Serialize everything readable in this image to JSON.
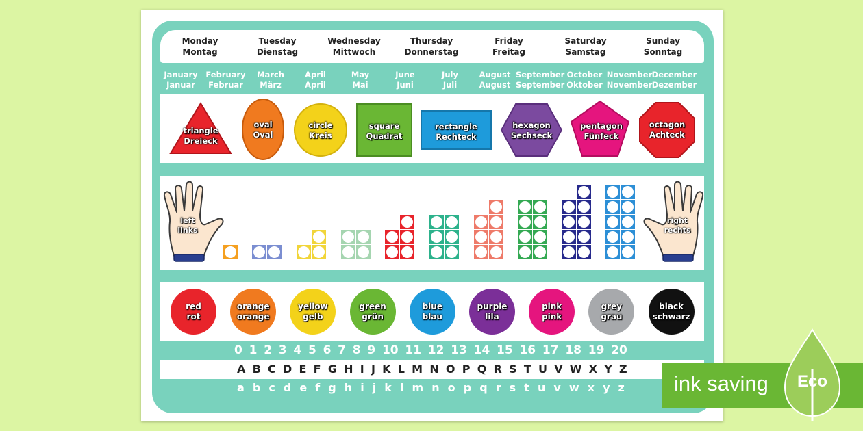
{
  "days": [
    {
      "en": "Monday",
      "de": "Montag"
    },
    {
      "en": "Tuesday",
      "de": "Dienstag"
    },
    {
      "en": "Wednesday",
      "de": "Mittwoch"
    },
    {
      "en": "Thursday",
      "de": "Donnerstag"
    },
    {
      "en": "Friday",
      "de": "Freitag"
    },
    {
      "en": "Saturday",
      "de": "Samstag"
    },
    {
      "en": "Sunday",
      "de": "Sonntag"
    }
  ],
  "months": [
    {
      "en": "January",
      "de": "Januar"
    },
    {
      "en": "February",
      "de": "Februar"
    },
    {
      "en": "March",
      "de": "März"
    },
    {
      "en": "April",
      "de": "April"
    },
    {
      "en": "May",
      "de": "Mai"
    },
    {
      "en": "June",
      "de": "Juni"
    },
    {
      "en": "July",
      "de": "Juli"
    },
    {
      "en": "August",
      "de": "August"
    },
    {
      "en": "September",
      "de": "September"
    },
    {
      "en": "October",
      "de": "Oktober"
    },
    {
      "en": "November",
      "de": "November"
    },
    {
      "en": "December",
      "de": "Dezember"
    }
  ],
  "shapes": [
    {
      "en": "triangle",
      "de": "Dreieck",
      "color": "#e8242b"
    },
    {
      "en": "oval",
      "de": "Oval",
      "color": "#f07a1f"
    },
    {
      "en": "circle",
      "de": "Kreis",
      "color": "#f3d21a"
    },
    {
      "en": "square",
      "de": "Quadrat",
      "color": "#6ab734"
    },
    {
      "en": "rectangle",
      "de": "Rechteck",
      "color": "#1e9bdb"
    },
    {
      "en": "hexagon",
      "de": "Sechseck",
      "color": "#7b4a9f"
    },
    {
      "en": "pentagon",
      "de": "Fünfeck",
      "color": "#e5157e"
    },
    {
      "en": "octagon",
      "de": "Achteck",
      "color": "#e8242b"
    }
  ],
  "hands": {
    "left": {
      "en": "left",
      "de": "links"
    },
    "right": {
      "en": "right",
      "de": "rechts"
    }
  },
  "numberblocks": [
    {
      "value": 1,
      "color": "#f5a020"
    },
    {
      "value": 2,
      "color": "#7b8ed1"
    },
    {
      "value": 3,
      "color": "#f1d53a"
    },
    {
      "value": 4,
      "color": "#a5d5b0"
    },
    {
      "value": 5,
      "color": "#e8242b"
    },
    {
      "value": 6,
      "color": "#2db28c"
    },
    {
      "value": 7,
      "color": "#ee7a69"
    },
    {
      "value": 8,
      "color": "#34a953"
    },
    {
      "value": 9,
      "color": "#272a8c"
    },
    {
      "value": 10,
      "color": "#2d8fd6"
    }
  ],
  "colors": [
    {
      "en": "red",
      "de": "rot",
      "color": "#e8242b"
    },
    {
      "en": "orange",
      "de": "orange",
      "color": "#f07a1f"
    },
    {
      "en": "yellow",
      "de": "gelb",
      "color": "#f3d21a"
    },
    {
      "en": "green",
      "de": "grün",
      "color": "#6ab734"
    },
    {
      "en": "blue",
      "de": "blau",
      "color": "#1e9bdb"
    },
    {
      "en": "purple",
      "de": "lila",
      "color": "#7b2f98"
    },
    {
      "en": "pink",
      "de": "pink",
      "color": "#e5157e"
    },
    {
      "en": "grey",
      "de": "grau",
      "color": "#a7a9ac"
    },
    {
      "en": "black",
      "de": "schwarz",
      "color": "#111111"
    }
  ],
  "numbers": [
    "0",
    "1",
    "2",
    "3",
    "4",
    "5",
    "6",
    "7",
    "8",
    "9",
    "10",
    "11",
    "12",
    "13",
    "14",
    "15",
    "16",
    "17",
    "18",
    "19",
    "20"
  ],
  "uppercase": [
    "A",
    "B",
    "C",
    "D",
    "E",
    "F",
    "G",
    "H",
    "I",
    "J",
    "K",
    "L",
    "M",
    "N",
    "O",
    "P",
    "Q",
    "R",
    "S",
    "T",
    "U",
    "V",
    "W",
    "X",
    "Y",
    "Z"
  ],
  "lowercase": [
    "a",
    "b",
    "c",
    "d",
    "e",
    "f",
    "g",
    "h",
    "i",
    "j",
    "k",
    "l",
    "m",
    "n",
    "o",
    "p",
    "q",
    "r",
    "s",
    "t",
    "u",
    "v",
    "w",
    "x",
    "y",
    "z"
  ],
  "eco_banner": {
    "text": "ink saving",
    "label": "Eco"
  },
  "theme": {
    "mat": "#79d2bd",
    "background": "#dcf5a3",
    "banner": "#6ab734",
    "leaf": "#9ccd5a"
  }
}
